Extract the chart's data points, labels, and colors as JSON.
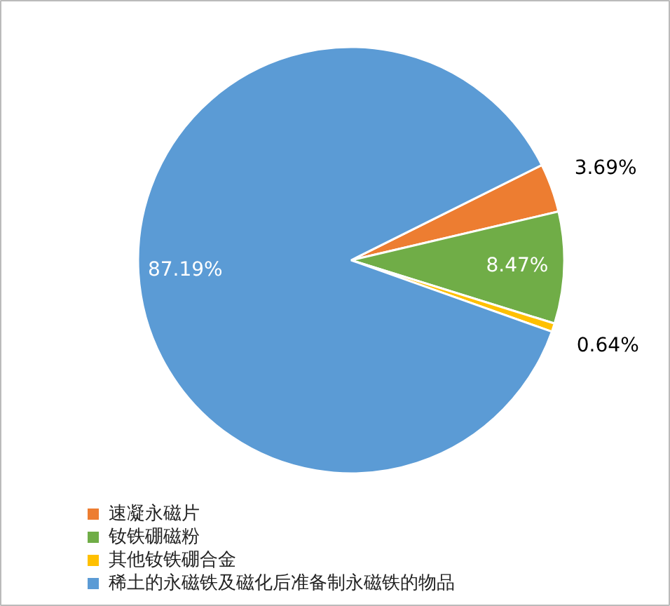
{
  "chart_data": {
    "type": "pie",
    "categories": [
      "速凝永磁片",
      "钕铁硼磁粉",
      "其他钕铁硼合金",
      "稀土的永磁铁及磁化后准备制永磁铁的物品"
    ],
    "values": [
      3.69,
      8.47,
      0.64,
      87.19
    ],
    "colors": [
      "#ed7d31",
      "#70ad47",
      "#ffc000",
      "#5b9bd5"
    ],
    "value_labels": [
      "3.69%",
      "8.47%",
      "0.64%",
      "87.19%"
    ],
    "legend": "bottom left"
  }
}
